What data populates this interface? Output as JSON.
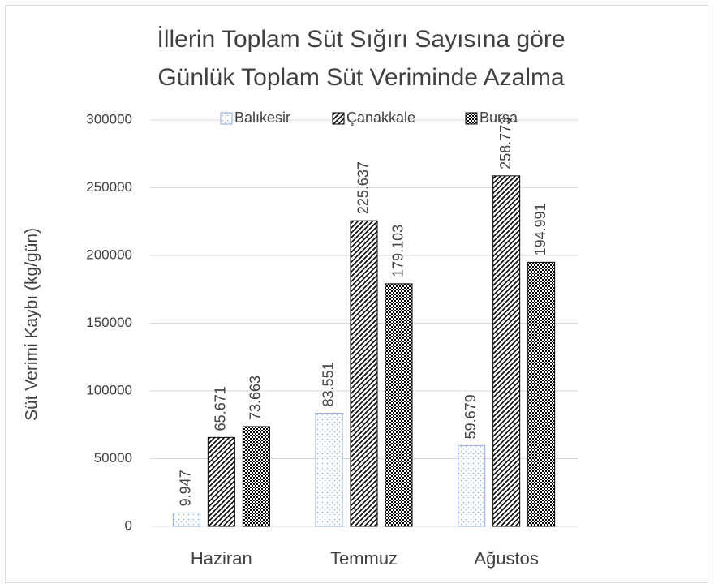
{
  "chart_data": {
    "type": "bar",
    "title": [
      "İllerin Toplam Süt Sığırı Sayısına göre",
      "Günlük Toplam Süt Veriminde Azalma"
    ],
    "y_label": "Süt Verimi Kaybı (kg/gün)",
    "categories": [
      "Haziran",
      "Temmuz",
      "Ağustos"
    ],
    "series": [
      {
        "name": "Balıkesir",
        "color": "#8faadc",
        "values": [
          9947,
          83551,
          59679
        ],
        "value_labels": [
          "9.947",
          "83.551",
          "59.679"
        ]
      },
      {
        "name": "Çanakkale",
        "color": "#000000",
        "values": [
          65671,
          225637,
          258773
        ],
        "value_labels": [
          "65.671",
          "225.637",
          "258.773"
        ]
      },
      {
        "name": "Bursa",
        "color": "#000000",
        "values": [
          73663,
          179103,
          194991
        ],
        "value_labels": [
          "73.663",
          "179.103",
          "194.991"
        ]
      }
    ],
    "ylim": [
      0,
      300000
    ],
    "yticks": [
      0,
      50000,
      100000,
      150000,
      200000,
      250000,
      300000
    ],
    "grid": true,
    "legend": "top"
  }
}
